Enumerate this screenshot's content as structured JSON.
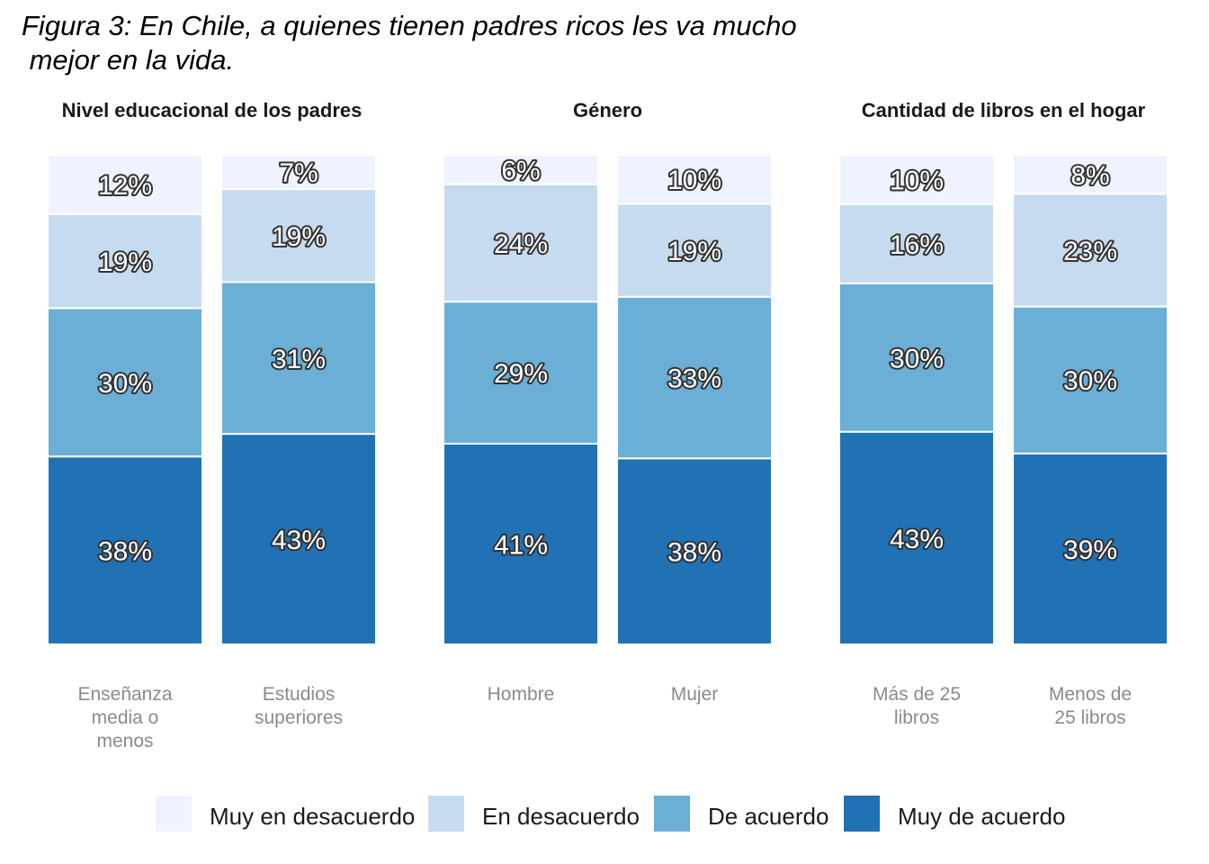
{
  "title": "Figura 3: En Chile, a quienes tienen padres ricos les va mucho\n mejor en la vida.",
  "chart_data": {
    "type": "bar",
    "stacked": true,
    "legend_position": "bottom",
    "grid": false,
    "levels": [
      {
        "name": "Muy de acuerdo",
        "color": "#2171b5"
      },
      {
        "name": "De acuerdo",
        "color": "#6baed6"
      },
      {
        "name": "En desacuerdo",
        "color": "#c6dbef"
      },
      {
        "name": "Muy en desacuerdo",
        "color": "#eff3ff"
      }
    ],
    "legend": [
      "Muy en desacuerdo",
      "En desacuerdo",
      "De acuerdo",
      "Muy de acuerdo"
    ],
    "panels": [
      {
        "title": "Nivel educacional de los padres",
        "bars": [
          {
            "category": "Enseñanza\nmedia o\nmenos",
            "values": [
              38,
              30,
              19,
              12
            ],
            "labels": [
              "38%",
              "30%",
              "19%",
              "12%"
            ]
          },
          {
            "category": "Estudios\nsuperiores",
            "values": [
              43,
              31,
              19,
              7
            ],
            "labels": [
              "43%",
              "31%",
              "19%",
              "7%"
            ]
          }
        ]
      },
      {
        "title": "Género",
        "bars": [
          {
            "category": "Hombre",
            "values": [
              41,
              29,
              24,
              6
            ],
            "labels": [
              "41%",
              "29%",
              "24%",
              "6%"
            ]
          },
          {
            "category": "Mujer",
            "values": [
              38,
              33,
              19,
              10
            ],
            "labels": [
              "38%",
              "33%",
              "19%",
              "10%"
            ]
          }
        ]
      },
      {
        "title": "Cantidad de libros en el hogar",
        "bars": [
          {
            "category": "Más de 25\nlibros",
            "values": [
              43,
              30,
              16,
              10
            ],
            "labels": [
              "43%",
              "30%",
              "16%",
              "10%"
            ]
          },
          {
            "category": "Menos de\n25 libros",
            "values": [
              39,
              30,
              23,
              8
            ],
            "labels": [
              "39%",
              "30%",
              "23%",
              "8%"
            ]
          }
        ]
      }
    ]
  }
}
